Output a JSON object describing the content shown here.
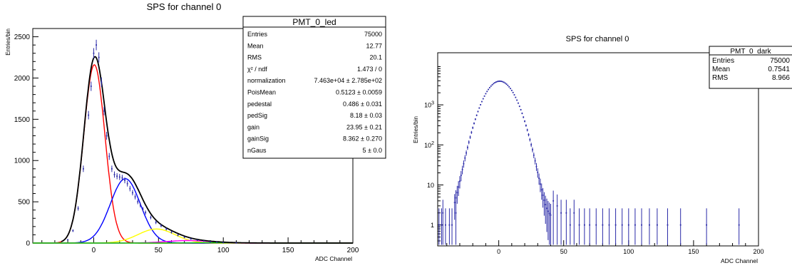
{
  "chart_data": [
    {
      "type": "histogram",
      "title": "SPS for channel 0",
      "xlabel": "ADC Channel",
      "ylabel": "Entries/bin",
      "xlim": [
        -47,
        200
      ],
      "ylim": [
        0,
        2600
      ],
      "yscale": "linear",
      "x_ticks": [
        0,
        50,
        100,
        150,
        200
      ],
      "y_ticks": [
        0,
        500,
        1000,
        1500,
        2000,
        2500
      ],
      "stats": {
        "title": "PMT_0_led",
        "rows": [
          {
            "label": "Entries",
            "value": "75000"
          },
          {
            "label": "Mean",
            "value": "12.77"
          },
          {
            "label": "RMS",
            "value": "20.1"
          },
          {
            "label": "χ² / ndf",
            "value": "1.473 / 0"
          },
          {
            "label": "normalization",
            "value": "7.463e+04 ± 2.785e+02"
          },
          {
            "label": "PoisMean",
            "value": "0.5123 ± 0.0059"
          },
          {
            "label": "pedestal",
            "value": "0.486 ± 0.031"
          },
          {
            "label": "pedSig",
            "value": "8.18 ± 0.03"
          },
          {
            "label": "gain",
            "value": "23.95 ± 0.21"
          },
          {
            "label": "gainSig",
            "value": "8.362 ± 0.270"
          },
          {
            "label": "nGaus",
            "value": "5 ± 0.0"
          }
        ]
      },
      "data_points": {
        "x": [
          -20,
          -16,
          -12,
          -8,
          -4,
          -2,
          0,
          2,
          4,
          6,
          8,
          10,
          12,
          14,
          16,
          18,
          20,
          22,
          24,
          26,
          28,
          30,
          32,
          34,
          36,
          38,
          40,
          44,
          48,
          52,
          56,
          60,
          65,
          70,
          75,
          80,
          85,
          90,
          95,
          100,
          110
        ],
        "y": [
          40,
          150,
          420,
          900,
          1550,
          1900,
          2300,
          2400,
          2250,
          1950,
          1600,
          1300,
          1050,
          900,
          830,
          810,
          800,
          790,
          760,
          720,
          660,
          610,
          560,
          500,
          460,
          410,
          370,
          310,
          250,
          210,
          170,
          130,
          95,
          70,
          50,
          35,
          25,
          15,
          10,
          6,
          2
        ]
      },
      "fit_components": [
        {
          "color": "#ff0000",
          "mean": 0.486,
          "sigma": 8.18,
          "amplitude": 2160
        },
        {
          "color": "#0000ff",
          "mean": 24.4,
          "sigma": 11.6,
          "amplitude": 780
        },
        {
          "color": "#ffff00",
          "mean": 48.4,
          "sigma": 14.2,
          "amplitude": 170
        },
        {
          "color": "#ff00ff",
          "mean": 72.3,
          "sigma": 16.5,
          "amplitude": 30
        },
        {
          "color": "#00cc00",
          "mean": 96.3,
          "sigma": 18.6,
          "amplitude": 4
        }
      ],
      "total_fit_color": "#000000",
      "data_color": "#2a2aa8"
    },
    {
      "type": "histogram",
      "title": "SPS for channel 0",
      "xlabel": "ADC Channel",
      "ylabel": "Entries/bin",
      "xlim": [
        -47,
        200
      ],
      "ylim": [
        0.3,
        20000
      ],
      "yscale": "log",
      "x_ticks": [
        0,
        50,
        100,
        150,
        200
      ],
      "y_tick_labels": [
        {
          "base": "1",
          "exp": "",
          "value": 1
        },
        {
          "base": "10",
          "exp": "",
          "value": 10
        },
        {
          "base": "10",
          "exp": "2",
          "value": 100
        },
        {
          "base": "10",
          "exp": "3",
          "value": 1000
        }
      ],
      "stats": {
        "title": "PMT_0_dark",
        "rows": [
          {
            "label": "Entries",
            "value": "75000"
          },
          {
            "label": "Mean",
            "value": "0.7541"
          },
          {
            "label": "RMS",
            "value": "8.966"
          }
        ]
      },
      "peak": {
        "mean": 0.7541,
        "sigma": 8.966,
        "amplitude": 3900
      },
      "tail_points": {
        "x": [
          -46,
          -44,
          -43,
          -41,
          -38,
          -36,
          -33,
          42,
          45,
          48,
          52,
          55,
          58,
          62,
          66,
          70,
          75,
          80,
          85,
          90,
          95,
          100,
          105,
          110,
          116,
          122,
          130,
          140,
          160,
          185
        ],
        "y": [
          1,
          1,
          2,
          1,
          1,
          1,
          2,
          4,
          3,
          2,
          2,
          1,
          2,
          1,
          1,
          1,
          1,
          1,
          1,
          1,
          1,
          1,
          1,
          1,
          1,
          1,
          1,
          1,
          1,
          1
        ]
      },
      "data_color": "#2a2aa8"
    }
  ]
}
